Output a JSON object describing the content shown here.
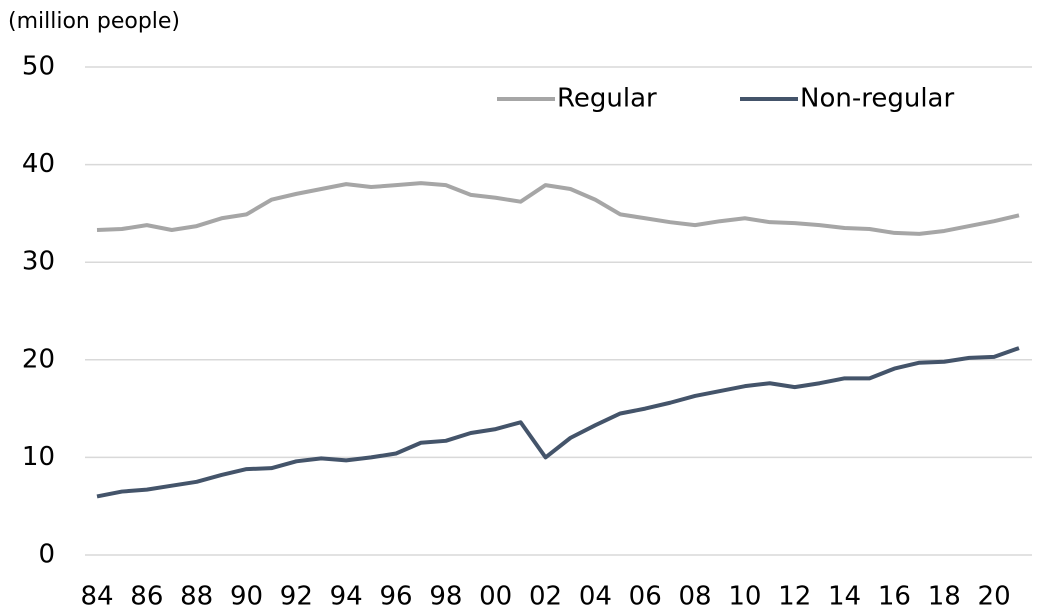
{
  "chart_data": {
    "type": "line",
    "y_label": "(million people)",
    "categories": [
      "84",
      null,
      "86",
      null,
      "88",
      null,
      "90",
      null,
      "92",
      null,
      "94",
      null,
      "96",
      null,
      "98",
      null,
      "00",
      null,
      "02",
      null,
      "04",
      null,
      "06",
      null,
      "08",
      null,
      "10",
      null,
      "12",
      null,
      "14",
      null,
      "16",
      null,
      "18",
      null,
      "20",
      null
    ],
    "series": [
      {
        "name": "Regular",
        "color": "#a6a6a6",
        "values": [
          33.3,
          33.4,
          33.8,
          33.3,
          33.7,
          34.5,
          34.9,
          36.4,
          37.0,
          37.5,
          38.0,
          37.7,
          37.9,
          38.1,
          37.9,
          36.9,
          36.6,
          36.2,
          37.9,
          37.5,
          36.4,
          34.9,
          34.5,
          34.1,
          33.8,
          34.2,
          34.5,
          34.1,
          34.0,
          33.8,
          33.5,
          33.4,
          33.0,
          32.9,
          33.2,
          33.7,
          34.2,
          34.8
        ]
      },
      {
        "name": "Non-regular",
        "color": "#44546a",
        "values": [
          6.0,
          6.5,
          6.7,
          7.1,
          7.5,
          8.2,
          8.8,
          8.9,
          9.6,
          9.9,
          9.7,
          10.0,
          10.4,
          11.5,
          11.7,
          12.5,
          12.9,
          13.6,
          10.0,
          12.0,
          13.3,
          14.5,
          15.0,
          15.6,
          16.3,
          16.8,
          17.3,
          17.6,
          17.2,
          17.6,
          18.1,
          18.1,
          19.1,
          19.7,
          19.8,
          20.2,
          20.3,
          21.2
        ]
      }
    ],
    "ylim": [
      0,
      50
    ],
    "yticks": [
      0,
      10,
      20,
      30,
      40,
      50
    ],
    "grid": true,
    "legend": "top-right"
  }
}
